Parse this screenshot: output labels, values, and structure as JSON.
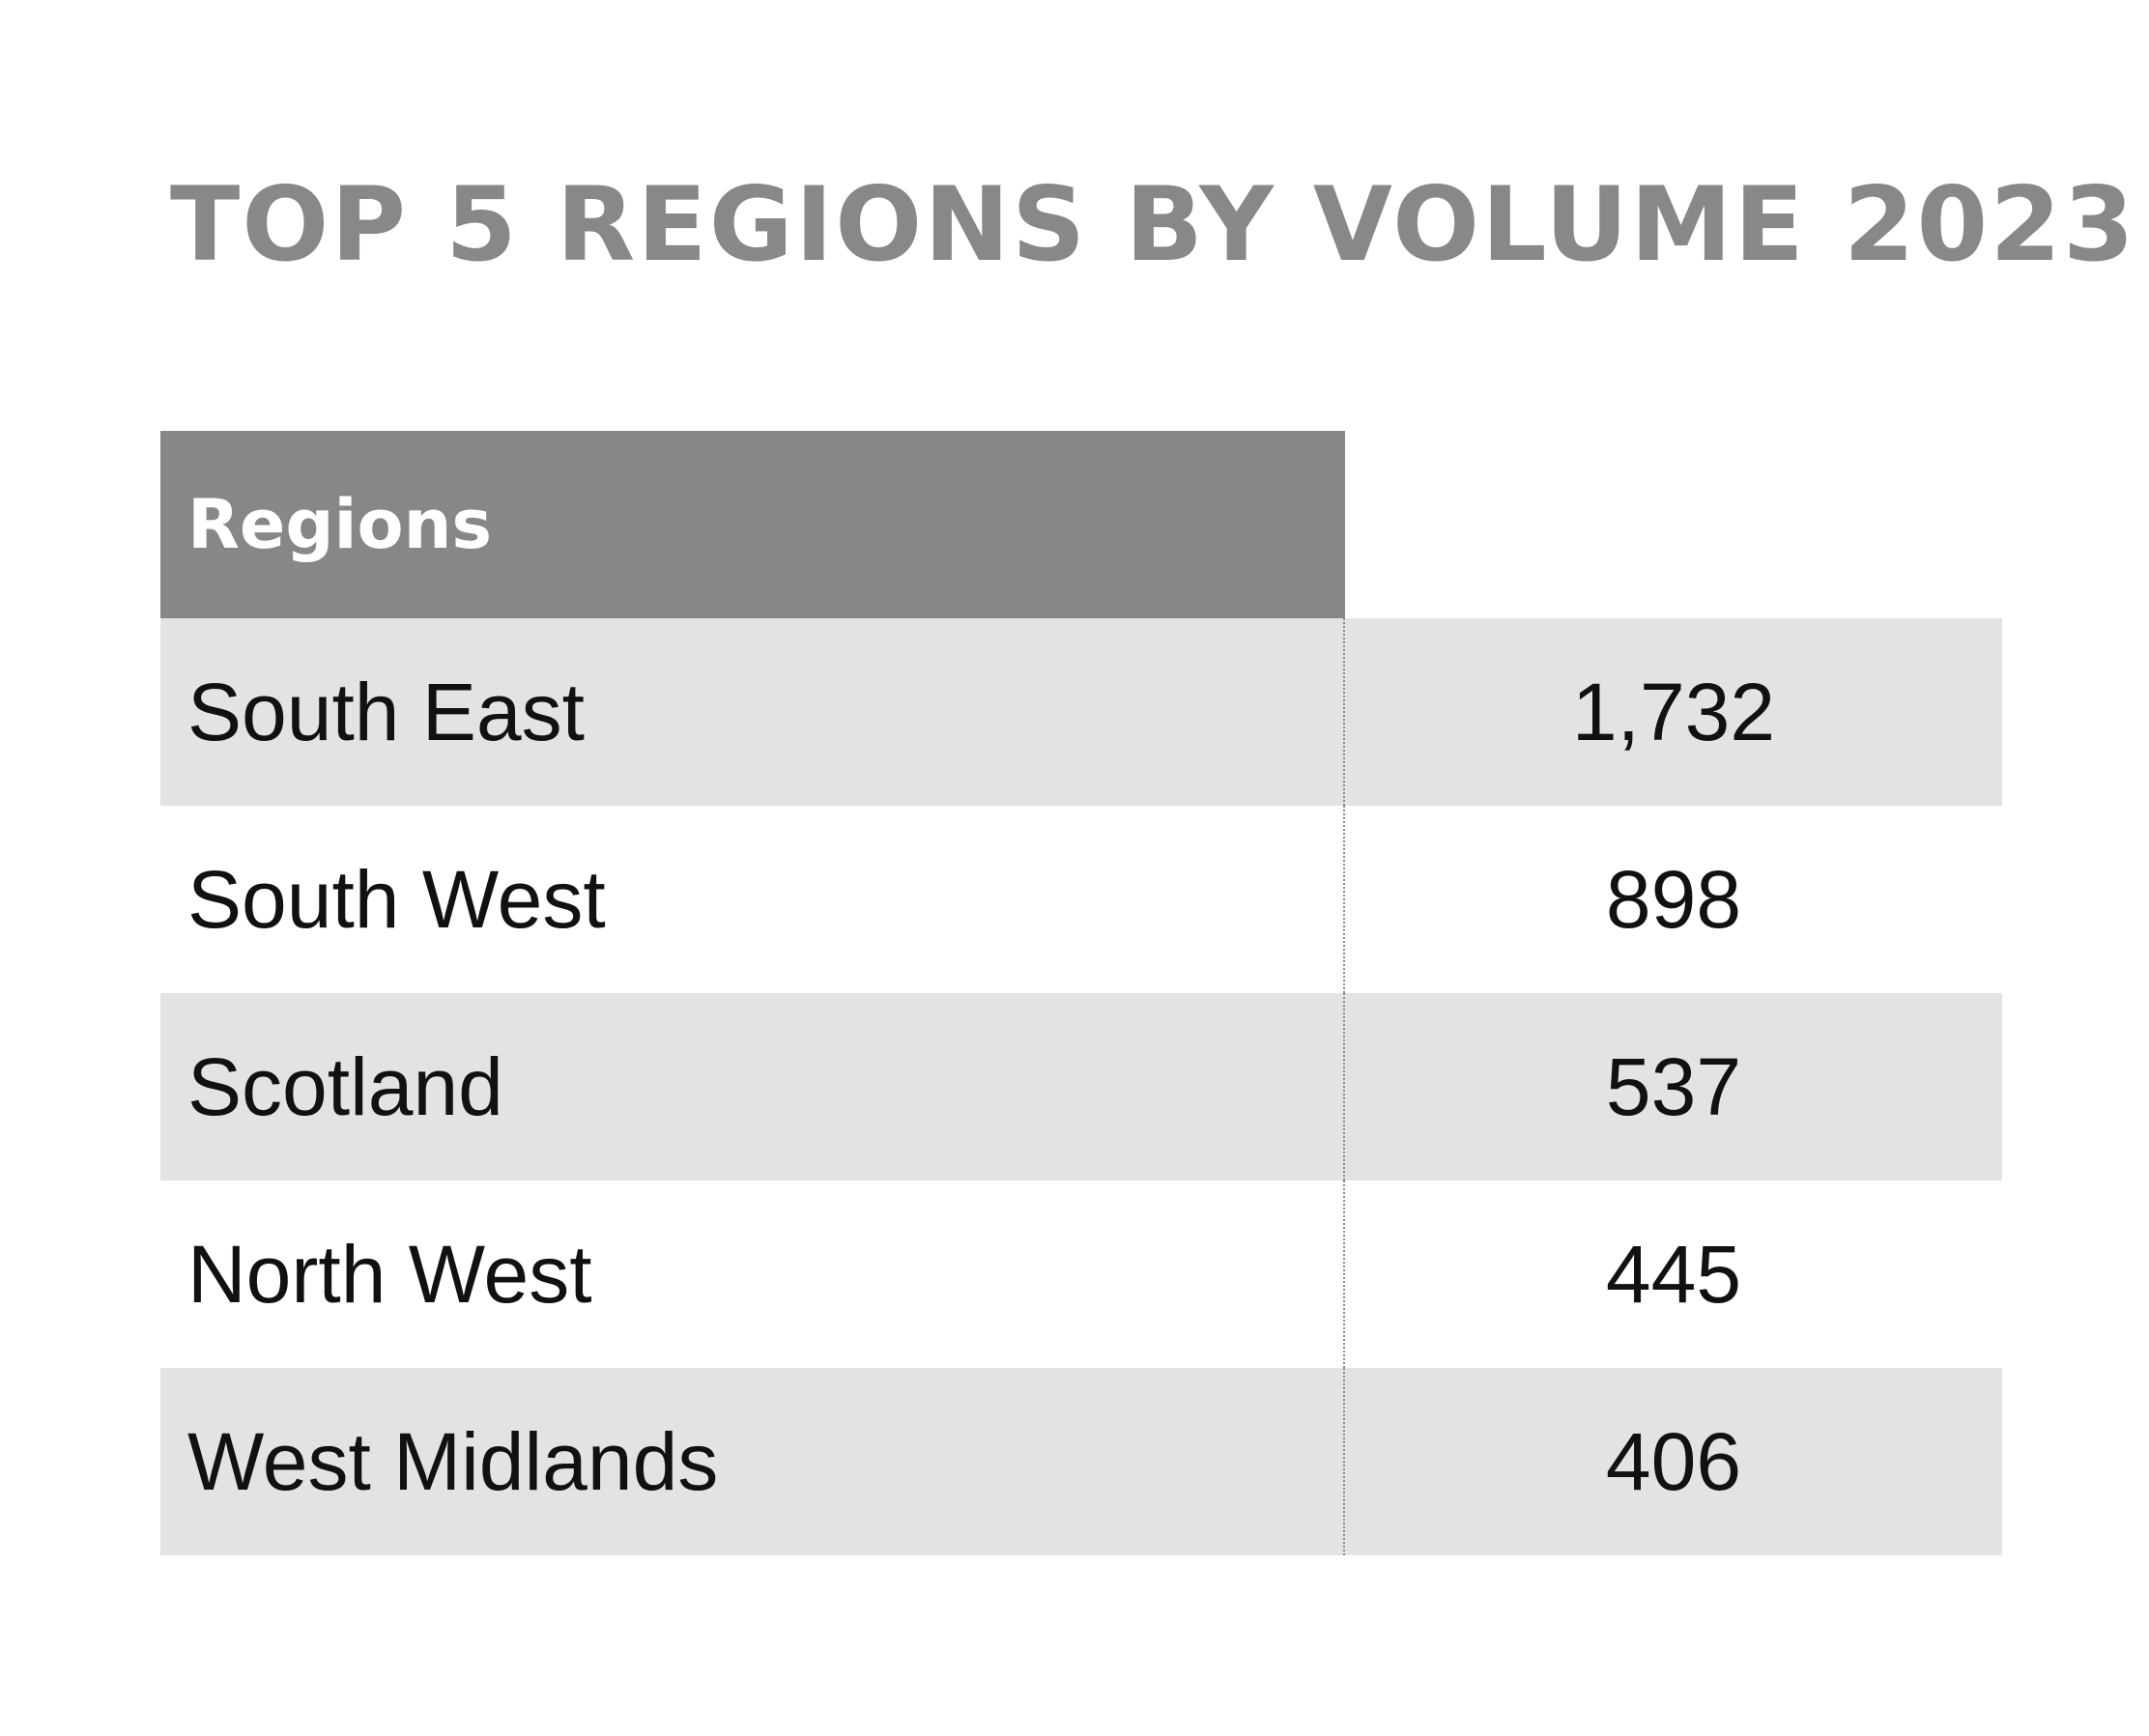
{
  "chart_data": {
    "type": "table",
    "title": "TOP 5 REGIONS BY VOLUME 2023",
    "columns": [
      "Regions",
      ""
    ],
    "rows": [
      {
        "region": "South East",
        "value": "1,732"
      },
      {
        "region": "South West",
        "value": "898"
      },
      {
        "region": "Scotland",
        "value": "537"
      },
      {
        "region": "North West",
        "value": "445"
      },
      {
        "region": "West Midlands",
        "value": "406"
      }
    ],
    "values": [
      1732,
      898,
      537,
      445,
      406
    ],
    "categories": [
      "South East",
      "South West",
      "Scotland",
      "North West",
      "West Midlands"
    ]
  },
  "colors": {
    "title": "#888888",
    "header_bg": "#878787",
    "header_text": "#ffffff",
    "row_shaded": "#e3e3e3",
    "row_plain": "#ffffff",
    "text": "#111111",
    "divider": "#8a8a8a"
  }
}
